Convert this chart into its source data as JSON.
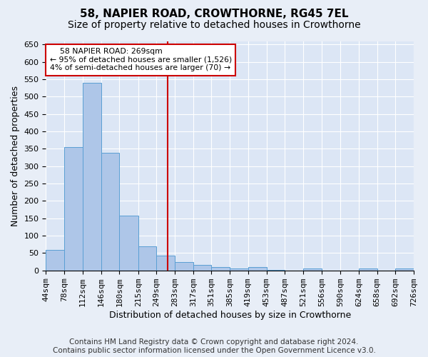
{
  "title": "58, NAPIER ROAD, CROWTHORNE, RG45 7EL",
  "subtitle": "Size of property relative to detached houses in Crowthorne",
  "xlabel": "Distribution of detached houses by size in Crowthorne",
  "ylabel": "Number of detached properties",
  "footer1": "Contains HM Land Registry data © Crown copyright and database right 2024.",
  "footer2": "Contains public sector information licensed under the Open Government Licence v3.0.",
  "bin_edges": [
    44,
    78,
    112,
    146,
    180,
    215,
    249,
    283,
    317,
    351,
    385,
    419,
    453,
    487,
    521,
    556,
    590,
    624,
    658,
    692,
    726
  ],
  "bar_heights": [
    58,
    355,
    540,
    338,
    157,
    70,
    43,
    24,
    16,
    10,
    5,
    9,
    1,
    0,
    5,
    0,
    0,
    5,
    0,
    5
  ],
  "bar_color": "#aec6e8",
  "bar_edge_color": "#5a9fd4",
  "vline_x": 269,
  "vline_color": "#cc0000",
  "annotation_line1": "    58 NAPIER ROAD: 269sqm",
  "annotation_line2": "← 95% of detached houses are smaller (1,526)",
  "annotation_line3": "4% of semi-detached houses are larger (70) →",
  "annotation_box_color": "#ffffff",
  "annotation_box_edge": "#cc0000",
  "ylim": [
    0,
    660
  ],
  "yticks": [
    0,
    50,
    100,
    150,
    200,
    250,
    300,
    350,
    400,
    450,
    500,
    550,
    600,
    650
  ],
  "bg_color": "#e8eef7",
  "plot_bg_color": "#dce6f5",
  "grid_color": "#ffffff",
  "title_fontsize": 11,
  "subtitle_fontsize": 10,
  "xlabel_fontsize": 9,
  "ylabel_fontsize": 9,
  "tick_fontsize": 8,
  "footer_fontsize": 7.5
}
